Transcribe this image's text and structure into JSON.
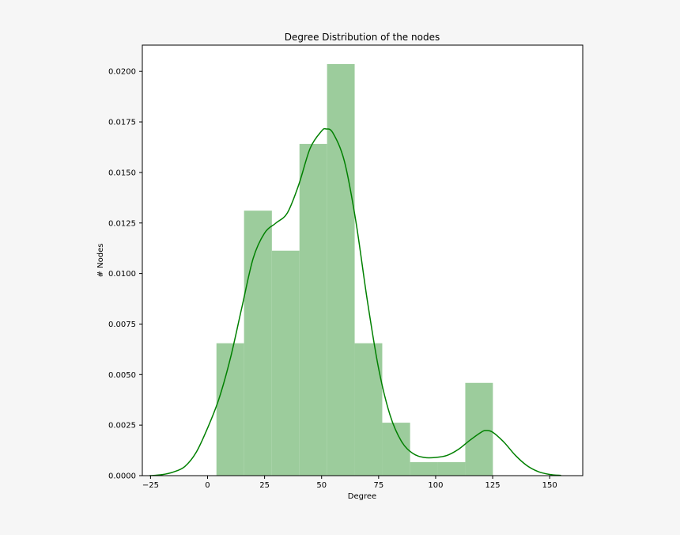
{
  "chart_data": {
    "type": "bar",
    "title": "Degree Distribution of the nodes",
    "xlabel": "Degree",
    "ylabel": "# Nodes",
    "xlim": [
      -28.6,
      164.5
    ],
    "ylim": [
      0,
      0.0213
    ],
    "x_ticks": [
      -25,
      0,
      25,
      50,
      75,
      100,
      125,
      150
    ],
    "x_tick_labels": [
      "−25",
      "0",
      "25",
      "50",
      "75",
      "100",
      "125",
      "150"
    ],
    "y_ticks": [
      0,
      0.0025,
      0.005,
      0.0075,
      0.01,
      0.0125,
      0.015,
      0.0175,
      0.02
    ],
    "y_tick_labels": [
      "0.0000",
      "0.0025",
      "0.0050",
      "0.0075",
      "0.0100",
      "0.0125",
      "0.0150",
      "0.0175",
      "0.0200"
    ],
    "grid": false,
    "legend": "none",
    "histogram": {
      "color": "#9ccc9c",
      "bins": [
        {
          "x0": 3.9,
          "x1": 16.0,
          "density": 0.00655
        },
        {
          "x0": 16.0,
          "x1": 28.2,
          "density": 0.01311
        },
        {
          "x0": 28.2,
          "x1": 40.3,
          "density": 0.01113
        },
        {
          "x0": 40.3,
          "x1": 52.4,
          "density": 0.01641
        },
        {
          "x0": 52.4,
          "x1": 64.5,
          "density": 0.02036
        },
        {
          "x0": 64.5,
          "x1": 76.6,
          "density": 0.00655
        },
        {
          "x0": 76.6,
          "x1": 88.8,
          "density": 0.00262
        },
        {
          "x0": 88.8,
          "x1": 100.9,
          "density": 0.00067
        },
        {
          "x0": 100.9,
          "x1": 113.0,
          "density": 0.00067
        },
        {
          "x0": 113.0,
          "x1": 125.1,
          "density": 0.00459
        }
      ]
    },
    "kde": {
      "color": "#008000",
      "x": [
        -25.4,
        -20,
        -15,
        -10,
        -5,
        0,
        5,
        10,
        15,
        20,
        25,
        30,
        35,
        40,
        45,
        50,
        52,
        55,
        60,
        65,
        70,
        75,
        80,
        85,
        90,
        95,
        100,
        105,
        110,
        115,
        120,
        122,
        125,
        130,
        135,
        140,
        145,
        150,
        155
      ],
      "y": [
        0.0,
        5e-05,
        0.00018,
        0.00045,
        0.00115,
        0.00235,
        0.0038,
        0.0058,
        0.0083,
        0.01075,
        0.012,
        0.0125,
        0.013,
        0.0144,
        0.0162,
        0.01705,
        0.01715,
        0.01695,
        0.01555,
        0.0126,
        0.0087,
        0.0053,
        0.003,
        0.0017,
        0.0011,
        0.0009,
        0.0009,
        0.001,
        0.0013,
        0.00175,
        0.00215,
        0.00223,
        0.00215,
        0.00165,
        0.001,
        0.0005,
        0.0002,
        6e-05,
        1e-05
      ]
    }
  }
}
